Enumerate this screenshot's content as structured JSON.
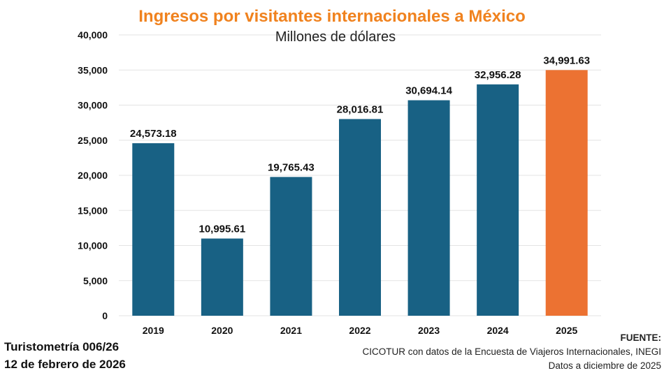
{
  "title": "Ingresos por visitantes internacionales a México",
  "subtitle": "Millones de dólares",
  "footer": {
    "left_line1": "Turistometría 006/26",
    "left_line2": "12 de febrero de 2026",
    "source_label": "FUENTE:",
    "source_text": "CICOTUR con datos de la Encuesta de Viajeros Internacionales, INEGI",
    "data_note": "Datos a diciembre de 2025"
  },
  "colors": {
    "bar": "#186184",
    "highlight": "#ec7232",
    "title": "#f0821e",
    "grid": "#e3e3e3"
  },
  "chart_data": {
    "type": "bar",
    "title": "Ingresos por visitantes internacionales a México",
    "subtitle": "Millones de dólares",
    "xlabel": "",
    "ylabel": "",
    "categories": [
      "2019",
      "2020",
      "2021",
      "2022",
      "2023",
      "2024",
      "2025"
    ],
    "values": [
      24573.18,
      10995.61,
      19765.43,
      28016.81,
      30694.14,
      32956.28,
      34991.63
    ],
    "value_labels": [
      "24,573.18",
      "10,995.61",
      "19,765.43",
      "28,016.81",
      "30,694.14",
      "32,956.28",
      "34,991.63"
    ],
    "highlight_index": 6,
    "ylim": [
      0,
      40000
    ],
    "yticks": [
      0,
      5000,
      10000,
      15000,
      20000,
      25000,
      30000,
      35000,
      40000
    ],
    "ytick_labels": [
      "0",
      "5,000",
      "10,000",
      "15,000",
      "20,000",
      "25,000",
      "30,000",
      "35,000",
      "40,000"
    ],
    "grid": true,
    "legend": "none"
  }
}
